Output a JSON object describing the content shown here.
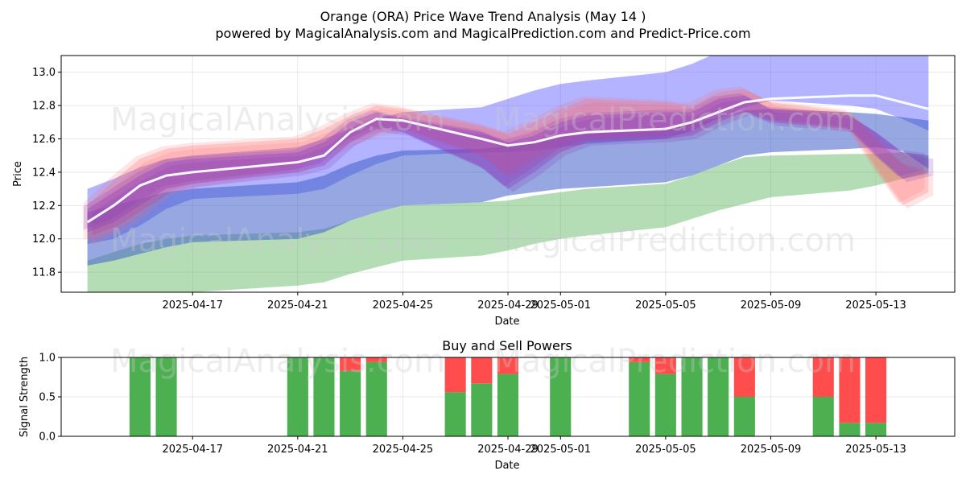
{
  "chart_data": [
    {
      "type": "area",
      "title_line1": "Orange (ORA) Price Wave Trend Analysis (May 14 )",
      "title_line2": "powered by MagicalAnalysis.com and MagicalPrediction.com and Predict-Price.com",
      "xlabel": "Date",
      "ylabel": "Price",
      "ylim": [
        11.68,
        13.1
      ],
      "xlim": [
        "2025-04-12",
        "2025-05-16"
      ],
      "x_ticks": [
        "2025-04-17",
        "2025-04-21",
        "2025-04-25",
        "2025-04-29",
        "2025-05-01",
        "2025-05-05",
        "2025-05-09",
        "2025-05-13"
      ],
      "y_ticks": [
        "11.8",
        "12.0",
        "12.2",
        "12.4",
        "12.6",
        "12.8",
        "13.0"
      ],
      "watermark": [
        "MagicalAnalysis.com",
        "MagicalPrediction.com"
      ],
      "colors": {
        "green_band": "#4caf50",
        "blue_band": "#4a4aff",
        "red_band": "#ff6b6b",
        "purple_band": "#8a3fbf",
        "price_line": "#ffffff"
      },
      "x": [
        "2025-04-13",
        "2025-04-14",
        "2025-04-15",
        "2025-04-16",
        "2025-04-17",
        "2025-04-21",
        "2025-04-22",
        "2025-04-23",
        "2025-04-24",
        "2025-04-25",
        "2025-04-28",
        "2025-04-29",
        "2025-04-30",
        "2025-05-01",
        "2025-05-02",
        "2025-05-05",
        "2025-05-06",
        "2025-05-07",
        "2025-05-08",
        "2025-05-09",
        "2025-05-12",
        "2025-05-13",
        "2025-05-14",
        "2025-05-15"
      ],
      "bands": [
        {
          "name": "green",
          "lower": [
            11.6,
            11.62,
            11.64,
            11.66,
            11.68,
            11.72,
            11.74,
            11.79,
            11.83,
            11.87,
            11.9,
            11.93,
            11.97,
            12.0,
            12.02,
            12.07,
            12.12,
            12.17,
            12.21,
            12.25,
            12.29,
            12.32,
            12.36,
            12.39
          ],
          "upper": [
            11.87,
            11.92,
            11.97,
            12.0,
            12.02,
            12.04,
            12.06,
            12.11,
            12.16,
            12.2,
            12.22,
            12.23,
            12.26,
            12.28,
            12.3,
            12.33,
            12.38,
            12.44,
            12.49,
            12.5,
            12.51,
            12.51,
            12.52,
            12.5
          ]
        },
        {
          "name": "blue_wide",
          "lower": [
            11.97,
            12.0,
            12.08,
            12.18,
            12.24,
            12.27,
            12.3,
            12.38,
            12.45,
            12.5,
            12.52,
            12.52,
            12.53,
            12.55,
            12.57,
            12.6,
            12.65,
            12.72,
            12.79,
            12.83,
            12.8,
            12.78,
            12.72,
            12.65
          ],
          "upper": [
            12.3,
            12.36,
            12.43,
            12.48,
            12.5,
            12.55,
            12.6,
            12.66,
            12.72,
            12.76,
            12.79,
            12.84,
            12.89,
            12.93,
            12.95,
            13.0,
            13.05,
            13.12,
            13.2,
            13.3,
            13.4,
            13.45,
            13.5,
            13.55
          ]
        },
        {
          "name": "blue_dark",
          "lower": [
            11.84,
            11.87,
            11.91,
            11.95,
            11.98,
            12.0,
            12.04,
            12.11,
            12.16,
            12.2,
            12.22,
            12.26,
            12.28,
            12.3,
            12.31,
            12.34,
            12.38,
            12.44,
            12.5,
            12.52,
            12.54,
            12.55,
            12.53,
            12.42
          ],
          "upper": [
            12.16,
            12.2,
            12.24,
            12.28,
            12.3,
            12.34,
            12.38,
            12.45,
            12.5,
            12.53,
            12.54,
            12.56,
            12.59,
            12.61,
            12.63,
            12.66,
            12.69,
            12.73,
            12.77,
            12.78,
            12.76,
            12.75,
            12.73,
            12.71
          ]
        },
        {
          "name": "red",
          "lower": [
            11.98,
            12.05,
            12.15,
            12.28,
            12.33,
            12.42,
            12.5,
            12.58,
            12.64,
            12.66,
            12.5,
            12.38,
            12.48,
            12.55,
            12.6,
            12.62,
            12.65,
            12.72,
            12.77,
            12.72,
            12.66,
            12.42,
            12.2,
            12.28
          ],
          "upper": [
            12.2,
            12.35,
            12.48,
            12.54,
            12.56,
            12.6,
            12.66,
            12.74,
            12.8,
            12.78,
            12.68,
            12.63,
            12.7,
            12.78,
            12.84,
            12.82,
            12.8,
            12.88,
            12.9,
            12.82,
            12.76,
            12.6,
            12.45,
            12.4
          ]
        },
        {
          "name": "purple",
          "lower": [
            12.04,
            12.1,
            12.2,
            12.3,
            12.33,
            12.4,
            12.44,
            12.58,
            12.66,
            12.64,
            12.43,
            12.3,
            12.4,
            12.52,
            12.58,
            12.6,
            12.62,
            12.7,
            12.76,
            12.7,
            12.66,
            12.5,
            12.36,
            12.4
          ],
          "upper": [
            12.18,
            12.28,
            12.38,
            12.46,
            12.48,
            12.52,
            12.58,
            12.7,
            12.76,
            12.72,
            12.64,
            12.58,
            12.62,
            12.7,
            12.74,
            12.76,
            12.76,
            12.84,
            12.86,
            12.78,
            12.74,
            12.64,
            12.52,
            12.5
          ]
        }
      ],
      "series": [
        {
          "name": "price",
          "values": [
            12.1,
            12.2,
            12.32,
            12.38,
            12.4,
            12.46,
            12.5,
            12.64,
            12.72,
            12.71,
            12.6,
            12.56,
            12.58,
            12.62,
            12.64,
            12.66,
            12.7,
            12.76,
            12.82,
            12.84,
            12.86,
            12.86,
            12.82,
            12.78
          ]
        }
      ]
    },
    {
      "type": "bar",
      "title": "Buy and Sell Powers",
      "xlabel": "Date",
      "ylabel": "Signal Strength",
      "ylim": [
        0,
        1
      ],
      "y_ticks": [
        "0.0",
        "0.5",
        "1.0"
      ],
      "x_ticks": [
        "2025-04-17",
        "2025-04-21",
        "2025-04-25",
        "2025-04-29",
        "2025-05-01",
        "2025-05-05",
        "2025-05-09",
        "2025-05-13"
      ],
      "colors": {
        "buy": "#4caf50",
        "sell": "#ff4c4c"
      },
      "categories": [
        "2025-04-15",
        "2025-04-16",
        "2025-04-21",
        "2025-04-22",
        "2025-04-23",
        "2025-04-24",
        "2025-04-27",
        "2025-04-28",
        "2025-04-29",
        "2025-05-01",
        "2025-05-04",
        "2025-05-05",
        "2025-05-06",
        "2025-05-07",
        "2025-05-08",
        "2025-05-11",
        "2025-05-12",
        "2025-05-13"
      ],
      "series": [
        {
          "name": "buy",
          "values": [
            1.0,
            1.0,
            1.0,
            1.0,
            0.83,
            0.94,
            0.56,
            0.67,
            0.79,
            1.0,
            0.94,
            0.79,
            1.0,
            1.0,
            0.5,
            0.5,
            0.17,
            0.17
          ]
        },
        {
          "name": "sell",
          "values": [
            0,
            0,
            0,
            0,
            0.17,
            0.06,
            0.44,
            0.33,
            0.21,
            0,
            0.06,
            0.21,
            0,
            0,
            0.5,
            0.5,
            0.83,
            0.83
          ]
        }
      ]
    }
  ]
}
